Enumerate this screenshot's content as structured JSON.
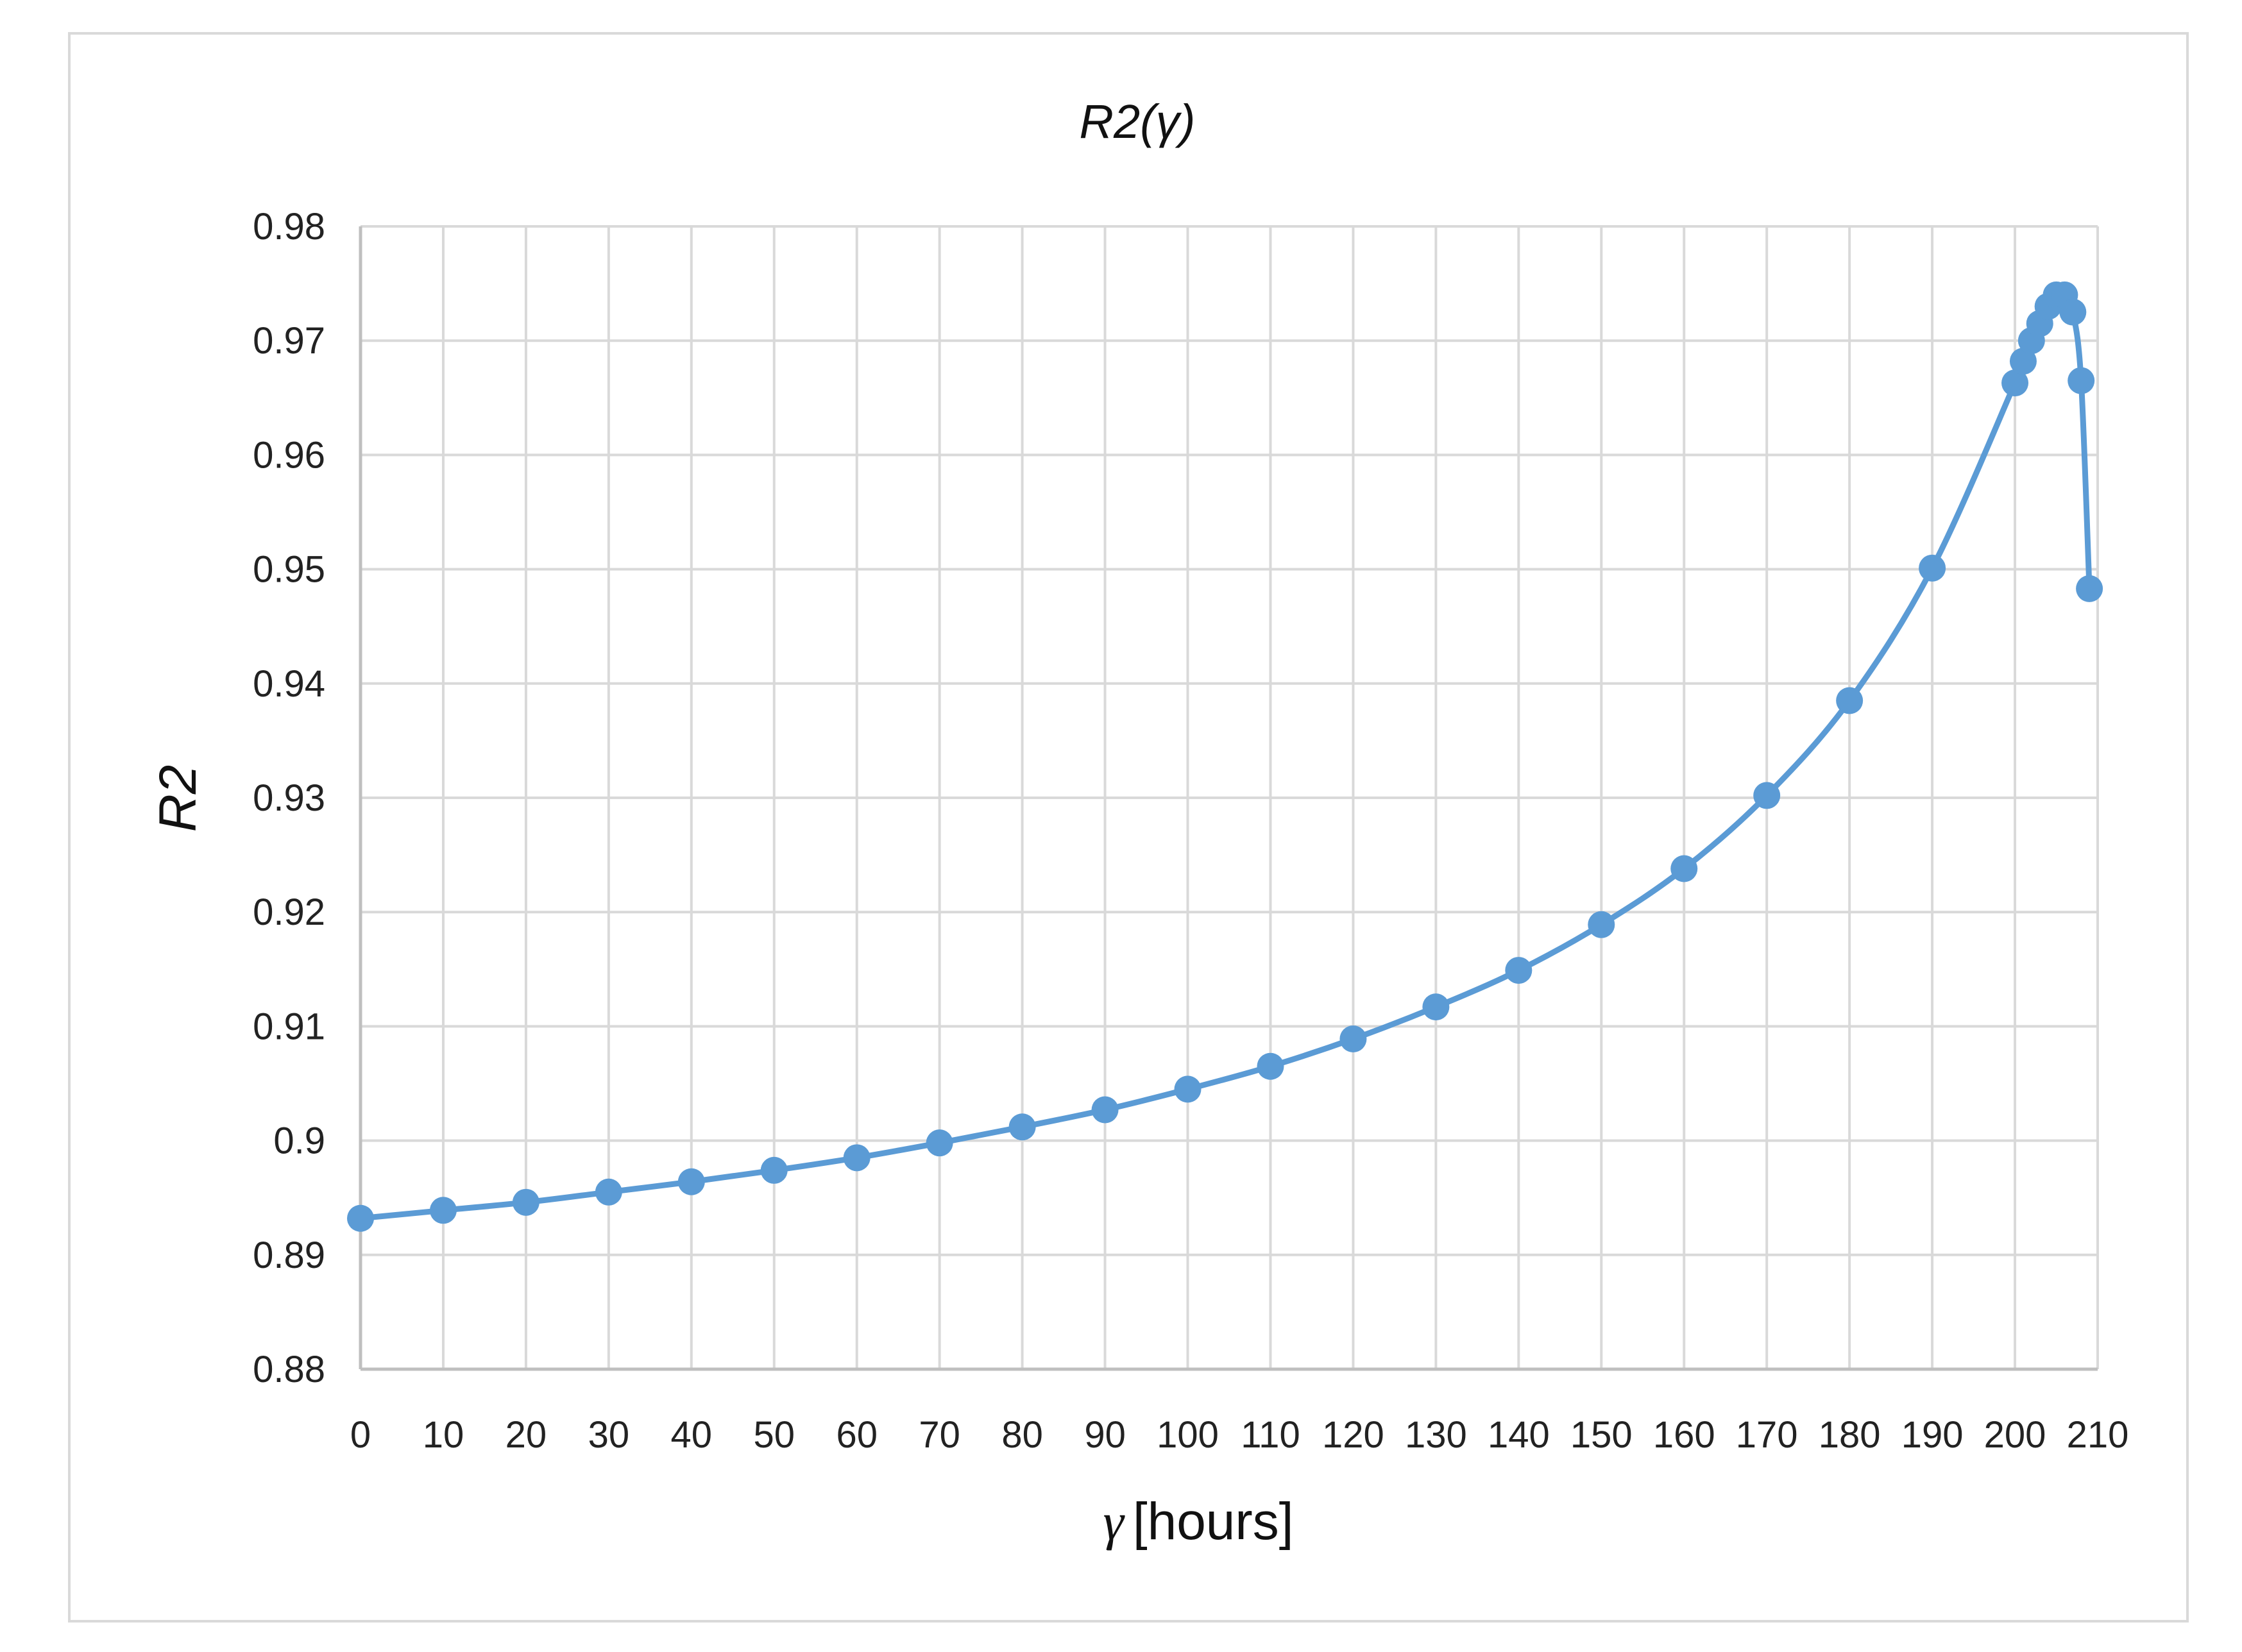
{
  "chart_data": {
    "type": "line",
    "title": "R2(γ)",
    "xlabel_symbol": "γ",
    "xlabel_unit": "[hours]",
    "ylabel": "R2",
    "xlim": [
      0,
      210
    ],
    "ylim": [
      0.88,
      0.98
    ],
    "x_ticks": [
      "0",
      "10",
      "20",
      "30",
      "40",
      "50",
      "60",
      "70",
      "80",
      "90",
      "100",
      "110",
      "120",
      "130",
      "140",
      "150",
      "160",
      "170",
      "180",
      "190",
      "200",
      "210"
    ],
    "y_ticks": [
      "0.88",
      "0.89",
      "0.9",
      "0.91",
      "0.92",
      "0.93",
      "0.94",
      "0.95",
      "0.96",
      "0.97",
      "0.98"
    ],
    "grid": true,
    "legend": "none",
    "line_color": "#5b9bd5",
    "grid_color": "#d9d9d9",
    "series": [
      {
        "x": [
          0,
          10,
          20,
          30,
          40,
          50,
          60,
          70,
          80,
          90,
          100,
          110,
          120,
          130,
          140,
          150,
          160,
          170,
          180,
          190,
          200,
          201,
          202,
          203,
          204,
          205,
          206,
          207,
          208,
          209
        ],
        "y": [
          0.8932,
          0.8939,
          0.8946,
          0.8955,
          0.8964,
          0.8974,
          0.8985,
          0.8998,
          0.9012,
          0.9027,
          0.9045,
          0.9065,
          0.9089,
          0.9117,
          0.9149,
          0.9189,
          0.9238,
          0.9302,
          0.9385,
          0.9501,
          0.9663,
          0.9682,
          0.97,
          0.9715,
          0.973,
          0.974,
          0.974,
          0.9725,
          0.9665,
          0.9483
        ]
      }
    ]
  }
}
